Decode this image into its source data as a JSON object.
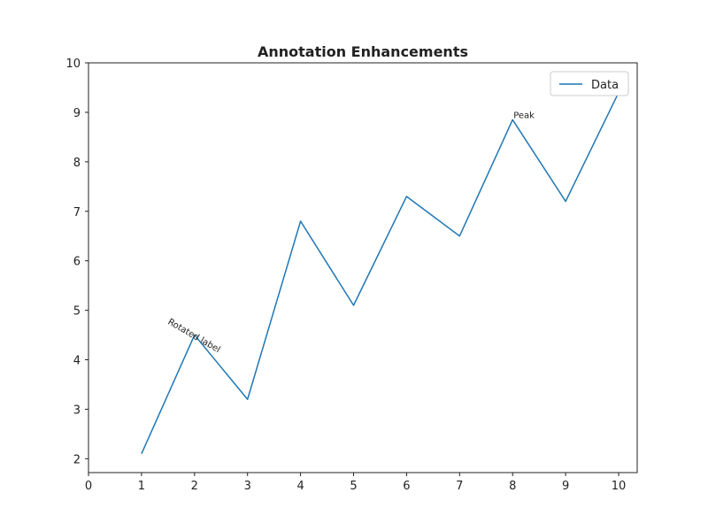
{
  "chart_data": {
    "type": "line",
    "title": "Annotation Enhancements",
    "xlabel": "",
    "ylabel": "",
    "xlim": [
      0,
      10.35
    ],
    "ylim": [
      1.72,
      10
    ],
    "xticks": [
      0,
      1,
      2,
      3,
      4,
      5,
      6,
      7,
      8,
      9,
      10
    ],
    "yticks": [
      2,
      3,
      4,
      5,
      6,
      7,
      8,
      9,
      10
    ],
    "grid": false,
    "legend_position": "top-right",
    "series": [
      {
        "name": "Data",
        "color": "#1f77b4",
        "x": [
          1,
          2,
          3,
          4,
          5,
          6,
          7,
          8,
          9,
          10
        ],
        "y": [
          2.1,
          4.5,
          3.2,
          6.8,
          5.1,
          7.3,
          6.5,
          8.85,
          7.2,
          9.4
        ]
      }
    ],
    "annotations": [
      {
        "text": "Rotated label",
        "x": 2,
        "y": 4.5,
        "rotation": -30
      },
      {
        "text": "Peak",
        "x": 8,
        "y": 8.85,
        "rotation": 0
      }
    ]
  }
}
